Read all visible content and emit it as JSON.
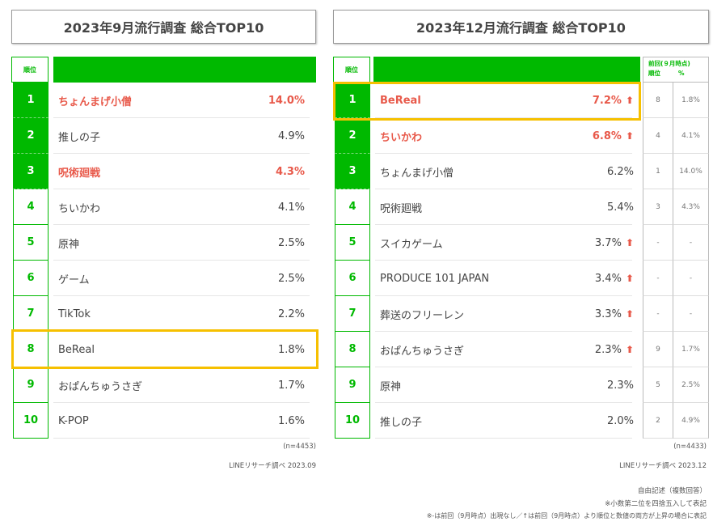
{
  "left": {
    "title": "2023年9月流行調査 総合TOP10",
    "rank_header": "順位",
    "rows": [
      {
        "rank": "1",
        "name": "ちょんまげ小僧",
        "pct": "14.0%",
        "highlight": true
      },
      {
        "rank": "2",
        "name": "推しの子",
        "pct": "4.9%",
        "highlight": false
      },
      {
        "rank": "3",
        "name": "呪術廻戦",
        "pct": "4.3%",
        "highlight": true
      },
      {
        "rank": "4",
        "name": "ちいかわ",
        "pct": "4.1%",
        "highlight": false
      },
      {
        "rank": "5",
        "name": "原神",
        "pct": "2.5%",
        "highlight": false
      },
      {
        "rank": "6",
        "name": "ゲーム",
        "pct": "2.5%",
        "highlight": false
      },
      {
        "rank": "7",
        "name": "TikTok",
        "pct": "2.2%",
        "highlight": false
      },
      {
        "rank": "8",
        "name": "BeReal",
        "pct": "1.8%",
        "highlight": false
      },
      {
        "rank": "9",
        "name": "おぱんちゅうさぎ",
        "pct": "1.7%",
        "highlight": false
      },
      {
        "rank": "10",
        "name": "K-POP",
        "pct": "1.6%",
        "highlight": false
      }
    ],
    "sample": "(n=4453)",
    "source": "LINEリサーチ調べ 2023.09"
  },
  "right": {
    "title": "2023年12月流行調査 総合TOP10",
    "rank_header": "順位",
    "prev_header_line1": "前回(９月時点)",
    "prev_header_rank": "順位",
    "prev_header_pct": "%",
    "rows": [
      {
        "rank": "1",
        "name": "BeReal",
        "pct": "7.2%",
        "up": true,
        "highlight": true,
        "prev_rank": "8",
        "prev_pct": "1.8%"
      },
      {
        "rank": "2",
        "name": "ちいかわ",
        "pct": "6.8%",
        "up": true,
        "highlight": true,
        "prev_rank": "4",
        "prev_pct": "4.1%"
      },
      {
        "rank": "3",
        "name": "ちょんまげ小僧",
        "pct": "6.2%",
        "up": false,
        "highlight": false,
        "prev_rank": "1",
        "prev_pct": "14.0%"
      },
      {
        "rank": "4",
        "name": "呪術廻戦",
        "pct": "5.4%",
        "up": false,
        "highlight": false,
        "prev_rank": "3",
        "prev_pct": "4.3%"
      },
      {
        "rank": "5",
        "name": "スイカゲーム",
        "pct": "3.7%",
        "up": true,
        "highlight": false,
        "prev_rank": "-",
        "prev_pct": "-"
      },
      {
        "rank": "6",
        "name": "PRODUCE 101 JAPAN",
        "pct": "3.4%",
        "up": true,
        "highlight": false,
        "prev_rank": "-",
        "prev_pct": "-"
      },
      {
        "rank": "7",
        "name": "葬送のフリーレン",
        "pct": "3.3%",
        "up": true,
        "highlight": false,
        "prev_rank": "-",
        "prev_pct": "-"
      },
      {
        "rank": "8",
        "name": "おぱんちゅうさぎ",
        "pct": "2.3%",
        "up": true,
        "highlight": false,
        "prev_rank": "9",
        "prev_pct": "1.7%"
      },
      {
        "rank": "9",
        "name": "原神",
        "pct": "2.3%",
        "up": false,
        "highlight": false,
        "prev_rank": "5",
        "prev_pct": "2.5%"
      },
      {
        "rank": "10",
        "name": "推しの子",
        "pct": "2.0%",
        "up": false,
        "highlight": false,
        "prev_rank": "2",
        "prev_pct": "4.9%"
      }
    ],
    "sample": "(n=4433)",
    "source": "LINEリサーチ調べ 2023.12",
    "notes": [
      "自由記述（複数回答）",
      "※小数第二位を四捨五入して表記",
      "※-は前回（9月時点）出現なし／↑は前回（9月時点）より順位と数値の両方が上昇の場合に表記"
    ]
  },
  "icons": {
    "up": "up-arrow-icon"
  },
  "colors": {
    "green": "#00b900",
    "highlight_text": "#e8594a",
    "focus_box": "#f6c000"
  }
}
